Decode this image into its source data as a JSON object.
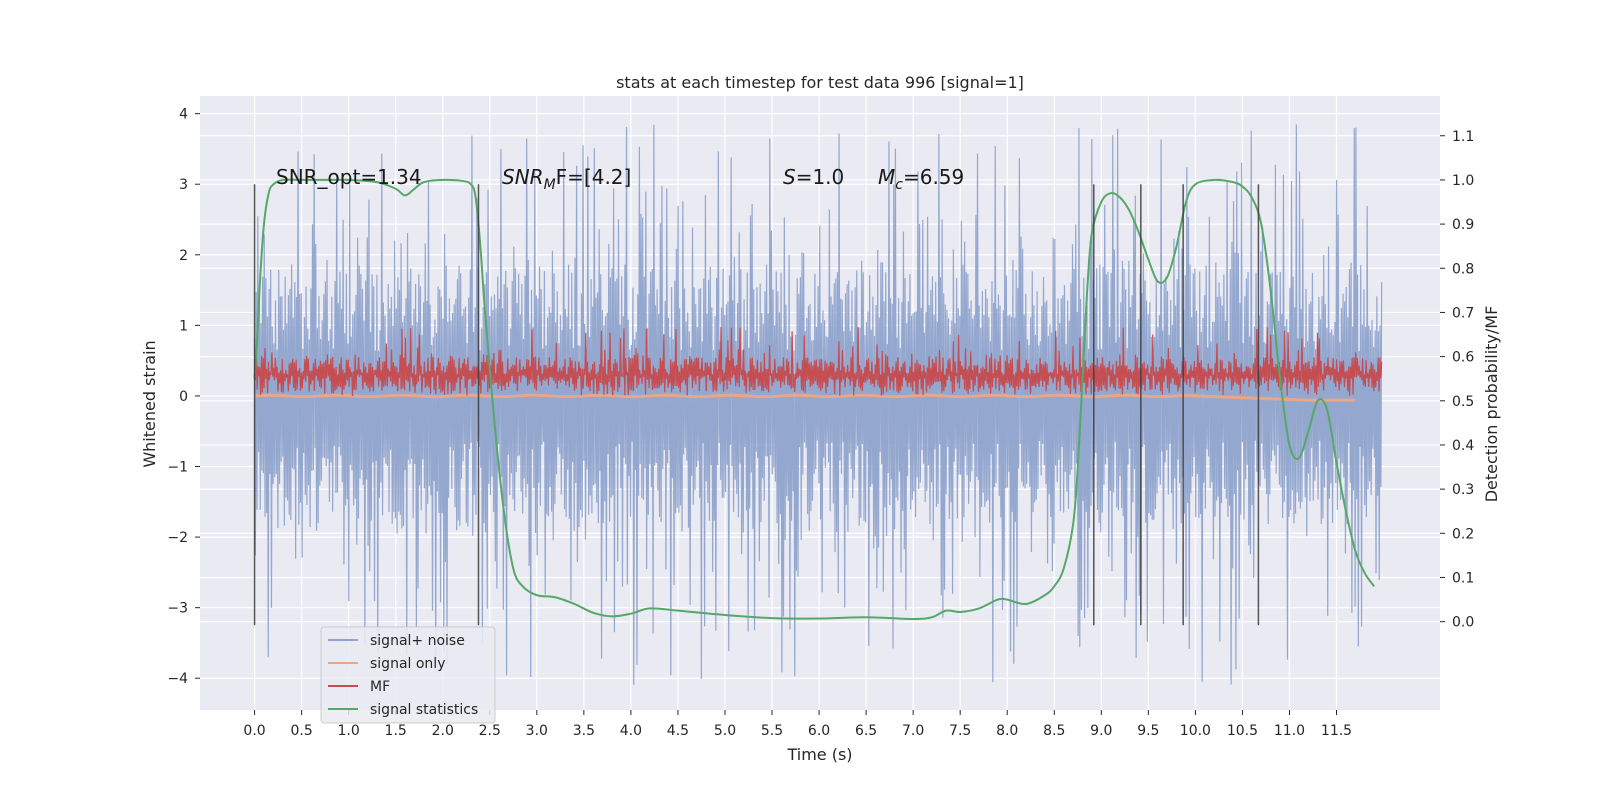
{
  "chart_data": {
    "type": "line",
    "title": "stats at each timestep for test data 996 [signal=1]",
    "xlabel": "Time (s)",
    "ylabel_left": "Whitened strain",
    "ylabel_right": "Detection probability/MF",
    "xlim": [
      -0.58,
      12.6
    ],
    "ylim_left": [
      -4.45,
      4.25
    ],
    "ylim_right": [
      -0.2,
      1.19
    ],
    "x_ticks": [
      "0.0",
      "0.5",
      "1.0",
      "1.5",
      "2.0",
      "2.5",
      "3.0",
      "3.5",
      "4.0",
      "4.5",
      "5.0",
      "5.5",
      "6.0",
      "6.5",
      "7.0",
      "7.5",
      "8.0",
      "8.5",
      "9.0",
      "9.5",
      "10.0",
      "10.5",
      "11.0",
      "11.5"
    ],
    "y_ticks_left": [
      "−4",
      "−3",
      "−2",
      "−1",
      "0",
      "1",
      "2",
      "3",
      "4"
    ],
    "y_ticks_right": [
      "0.0",
      "0.1",
      "0.2",
      "0.3",
      "0.4",
      "0.5",
      "0.6",
      "0.7",
      "0.8",
      "0.9",
      "1.0",
      "1.1"
    ],
    "grid": true,
    "legend_position": "bottom-left",
    "annotations": {
      "snr_opt": "SNR_opt=1.34",
      "snr_mf_base": "SNR",
      "snr_mf_sub": "M",
      "snr_mf_rest": "F=[4.2]",
      "s_sym": "S",
      "s_val": "=1.0",
      "mc_sym": "M",
      "mc_sub": "c",
      "mc_val": "=6.59"
    },
    "series": [
      {
        "name": "signal+ noise",
        "color": "#8fa3cc",
        "axis": "left",
        "x_range": [
          0.0,
          11.98
        ],
        "typical_range": [
          -1.8,
          1.8
        ],
        "peak_range": [
          -4.1,
          3.85
        ]
      },
      {
        "name": "signal only",
        "color": "#e8a68a",
        "axis": "left",
        "x_range": [
          0.0,
          11.7
        ],
        "values_summary": "approx. 0, slight negative drift near end (-0.1)"
      },
      {
        "name": "MF",
        "color": "#c44e52",
        "axis": "left",
        "x_range": [
          0.0,
          11.98
        ],
        "typical_range": [
          0.05,
          0.55
        ],
        "peak_range": [
          0.0,
          1.0
        ]
      },
      {
        "name": "signal statistics",
        "color": "#55a868",
        "axis": "right",
        "x": [
          0.0,
          0.03,
          0.06,
          0.1,
          0.15,
          0.2,
          0.3,
          0.5,
          0.8,
          1.0,
          1.3,
          1.5,
          1.6,
          1.7,
          1.8,
          2.0,
          2.2,
          2.3,
          2.35,
          2.4,
          2.45,
          2.55,
          2.65,
          2.75,
          2.85,
          3.0,
          3.2,
          3.4,
          3.6,
          3.8,
          4.0,
          4.2,
          4.5,
          5.0,
          5.5,
          6.0,
          6.5,
          7.0,
          7.2,
          7.35,
          7.5,
          7.7,
          7.9,
          8.0,
          8.2,
          8.4,
          8.5,
          8.6,
          8.7,
          8.75,
          8.8,
          8.85,
          8.9,
          9.0,
          9.1,
          9.2,
          9.3,
          9.4,
          9.5,
          9.6,
          9.7,
          9.8,
          9.9,
          10.0,
          10.2,
          10.4,
          10.5,
          10.6,
          10.7,
          10.8,
          10.9,
          11.0,
          11.1,
          11.2,
          11.3,
          11.4,
          11.5,
          11.6,
          11.7,
          11.8,
          11.9
        ],
        "values": [
          0.55,
          0.65,
          0.78,
          0.9,
          0.97,
          0.99,
          1.0,
          1.0,
          1.0,
          1.0,
          0.995,
          0.98,
          0.965,
          0.98,
          0.995,
          1.0,
          0.998,
          0.99,
          0.96,
          0.85,
          0.7,
          0.45,
          0.25,
          0.12,
          0.08,
          0.06,
          0.055,
          0.04,
          0.02,
          0.012,
          0.018,
          0.03,
          0.025,
          0.015,
          0.008,
          0.007,
          0.01,
          0.006,
          0.01,
          0.025,
          0.022,
          0.03,
          0.05,
          0.05,
          0.04,
          0.06,
          0.08,
          0.12,
          0.22,
          0.35,
          0.55,
          0.75,
          0.88,
          0.95,
          0.97,
          0.96,
          0.93,
          0.88,
          0.82,
          0.77,
          0.78,
          0.85,
          0.95,
          0.99,
          1.0,
          0.995,
          0.985,
          0.96,
          0.9,
          0.75,
          0.55,
          0.4,
          0.37,
          0.43,
          0.5,
          0.48,
          0.36,
          0.25,
          0.16,
          0.11,
          0.08
        ]
      }
    ],
    "vertical_markers": [
      0.0,
      2.38,
      8.92,
      9.42,
      9.87,
      10.67
    ],
    "marker_y_range": [
      -3.25,
      3.0
    ]
  }
}
